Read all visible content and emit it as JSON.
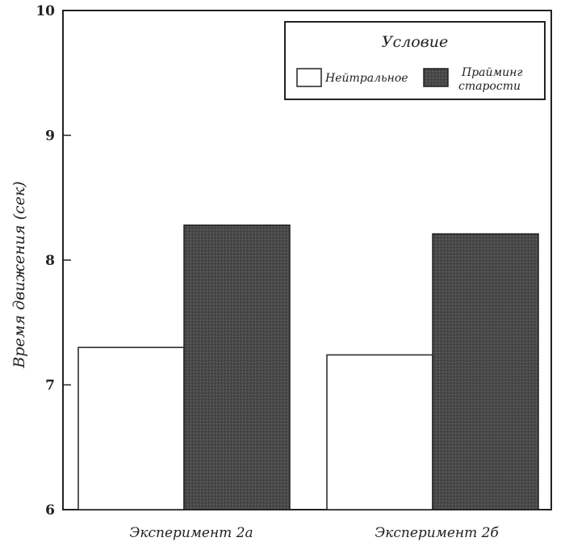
{
  "chart_data": {
    "type": "bar",
    "categories": [
      "Эксперимент 2а",
      "Эксперимент 2б"
    ],
    "series": [
      {
        "name": "Нейтральное",
        "values": [
          7.3,
          7.24
        ]
      },
      {
        "name": "Прайминг старости",
        "values": [
          8.28,
          8.21
        ]
      }
    ],
    "ylabel": "Время движения (сек)",
    "ylim": [
      6,
      10
    ],
    "yticks": [
      "6",
      "7",
      "8",
      "9",
      "10"
    ],
    "legend": {
      "title": "Условие",
      "position": "top-right",
      "items": [
        {
          "label_lines": [
            "Нейтральное"
          ]
        },
        {
          "label_lines": [
            "Прайминг",
            "старости"
          ]
        }
      ]
    },
    "colors": {
      "neutral": "#ffffff",
      "priming": "#4a4a4a"
    },
    "grid": false
  }
}
